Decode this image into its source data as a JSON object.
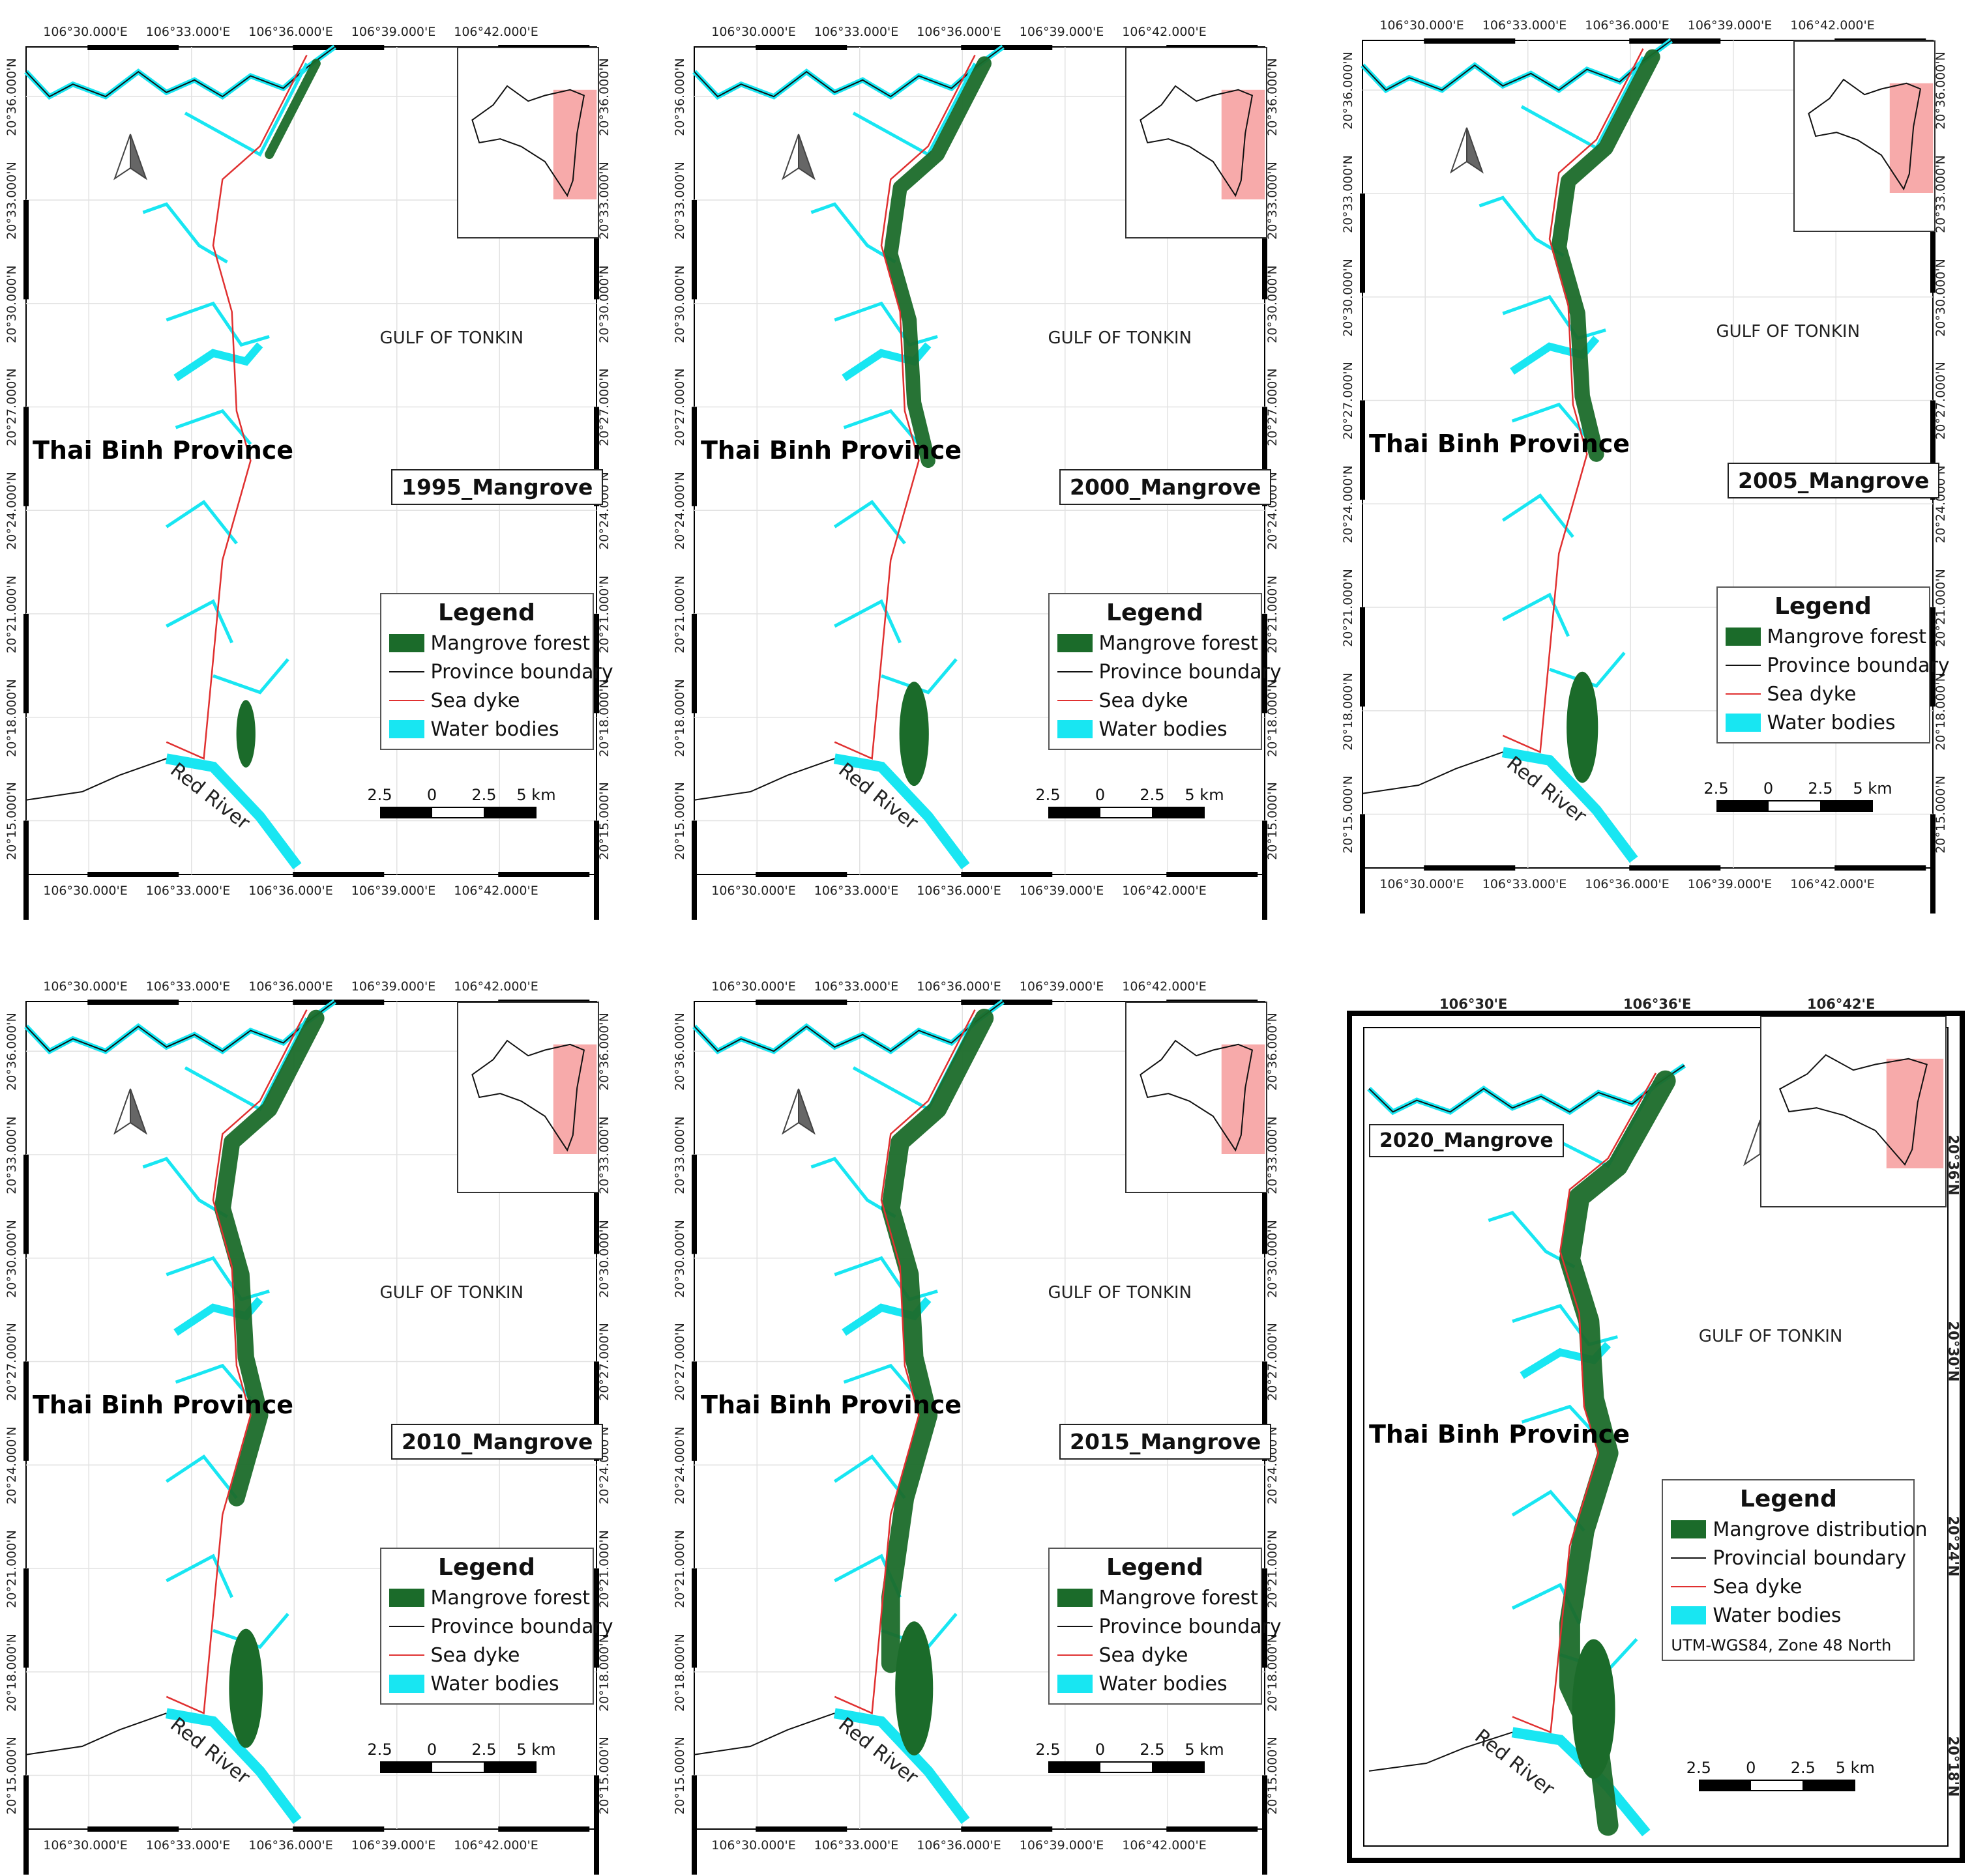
{
  "common": {
    "gulf_label": "GULF OF TONKIN",
    "province_label": "Thai Binh Province",
    "river_label": "Red River",
    "x_ticks": [
      "106°30.000'E",
      "106°33.000'E",
      "106°36.000'E",
      "106°39.000'E",
      "106°42.000'E"
    ],
    "y_ticks": [
      "20°36.000'N",
      "20°33.000'N",
      "20°30.000'N",
      "20°27.000'N",
      "20°24.000'N",
      "20°21.000'N",
      "20°18.000'N",
      "20°15.000'N"
    ],
    "scale_labels": [
      "2.5",
      "0",
      "2.5",
      "5 km"
    ],
    "legend_title": "Legend",
    "legend_items": [
      "Mangrove forest",
      "Province boundary",
      "Sea dyke",
      "Water bodies"
    ]
  },
  "panels": [
    {
      "year_label": "1995_Mangrove",
      "mangrove_extent": 0.18
    },
    {
      "year_label": "2000_Mangrove",
      "mangrove_extent": 0.55
    },
    {
      "year_label": "2005_Mangrove",
      "mangrove_extent": 0.62
    },
    {
      "year_label": "2010_Mangrove",
      "mangrove_extent": 0.7
    },
    {
      "year_label": "2015_Mangrove",
      "mangrove_extent": 0.85
    }
  ],
  "panel_2020": {
    "year_label": "2020_Mangrove",
    "x_ticks": [
      "106°30'E",
      "106°36'E",
      "106°42'E"
    ],
    "y_ticks": [
      "20°36'N",
      "20°30'N",
      "20°24'N",
      "20°18'N"
    ],
    "legend_title": "Legend",
    "legend_items": [
      "Mangrove distribution",
      "Provincial boundary",
      "Sea dyke",
      "Water bodies"
    ],
    "projection": "UTM-WGS84, Zone 48 North",
    "scale_labels": [
      "2.5",
      "0",
      "2.5",
      "5 km"
    ],
    "gulf_label": "GULF OF TONKIN",
    "province_label": "Thai Binh Province",
    "river_label": "Red River",
    "mangrove_extent": 1.0
  },
  "colors": {
    "mangrove": "#1b6b2a",
    "water": "#18e6f2",
    "boundary": "#111111",
    "dyke": "#e03030",
    "inset_highlight": "#f7aaaa"
  }
}
